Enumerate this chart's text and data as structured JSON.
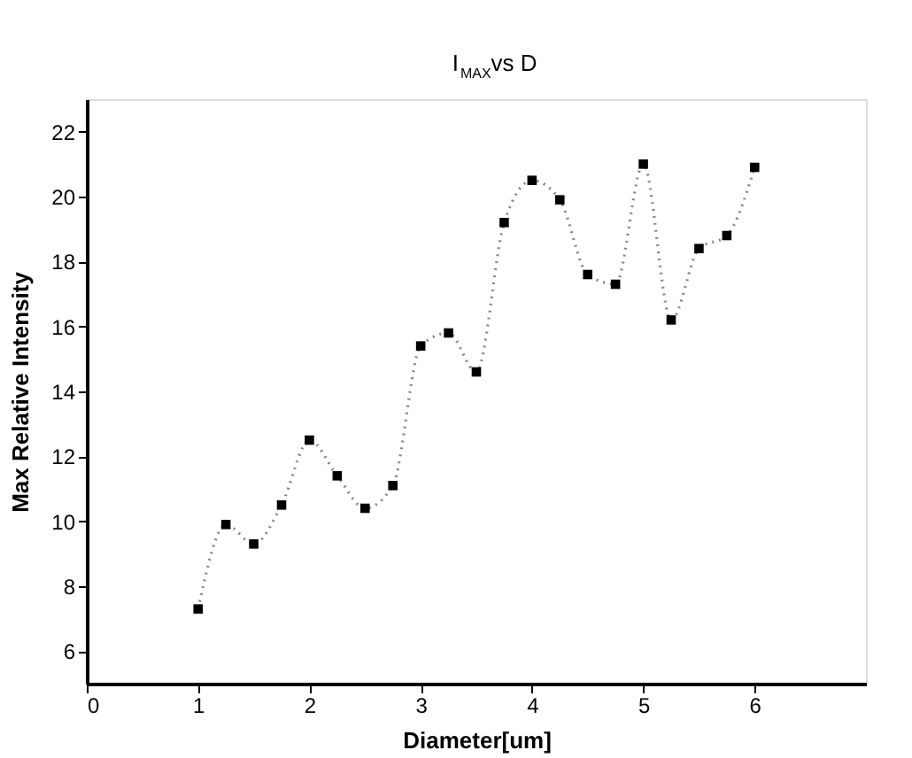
{
  "chart_data": {
    "type": "line",
    "title": "I$_{MAX}$vs D",
    "xlabel": "Diameter[um]",
    "ylabel": "Max Relative Intensity",
    "xlim": [
      0,
      7
    ],
    "xticks": [
      0,
      1,
      2,
      3,
      4,
      5,
      6
    ],
    "ylim": [
      5,
      23
    ],
    "yticks": [
      6,
      8,
      10,
      12,
      14,
      16,
      18,
      20,
      22
    ],
    "marker": "square",
    "line_style": "dotted",
    "grid": false,
    "x": [
      1,
      1.25,
      1.5,
      1.75,
      2,
      2.25,
      2.5,
      2.75,
      3,
      3.25,
      3.5,
      3.75,
      4,
      4.25,
      4.5,
      4.75,
      5,
      5.25,
      5.5,
      5.75,
      6
    ],
    "series": [
      {
        "color": "#000000",
        "values": [
          7.3,
          9.9,
          9.3,
          10.5,
          12.5,
          11.4,
          10.4,
          11.1,
          15.4,
          15.8,
          14.6,
          19.2,
          20.5,
          19.9,
          17.6,
          17.3,
          21.0,
          16.2,
          18.4,
          18.8,
          20.9
        ]
      }
    ]
  }
}
